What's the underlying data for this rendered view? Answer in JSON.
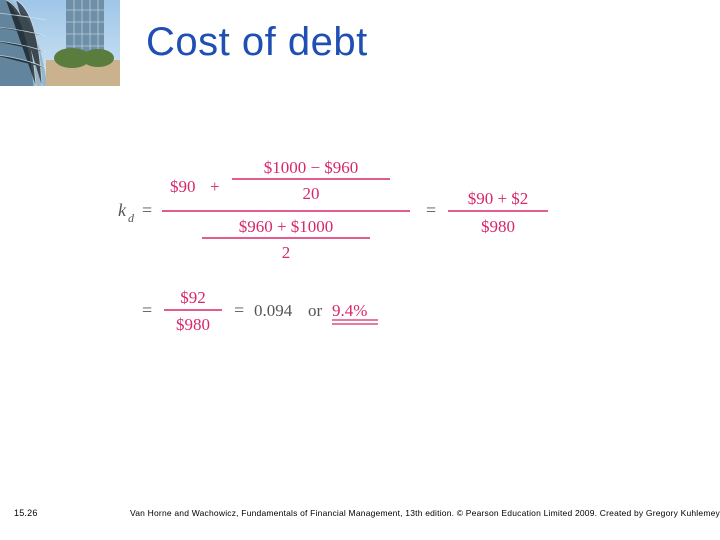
{
  "title": {
    "text": "Cost of debt",
    "color": "#1f4fb3"
  },
  "thumb": {
    "sky_top": "#9fc6e8",
    "sky_bottom": "#cfe4f3",
    "building1": "#6d8fa8",
    "building2": "#4b6f8a",
    "glass": "#98b6c8",
    "pot": "#c9b28d",
    "plant": "#5a7d3e"
  },
  "equation": {
    "text_color": "#555555",
    "value_color": "#d8276b",
    "k": {
      "sym": "k",
      "sub": "d"
    },
    "line1": {
      "coupon": "$90",
      "num_left": "$1000",
      "num_right": "$960",
      "num_den": "20",
      "den_left": "$960",
      "den_right": "$1000",
      "den_den": "2",
      "rhs_num_left": "$90",
      "rhs_num_right": "$2",
      "rhs_den": "$980"
    },
    "line2": {
      "num": "$92",
      "den": "$980",
      "dec": "0.094",
      "or": "or",
      "pct": "9.4%"
    },
    "font_family": "Georgia, 'Times New Roman', serif",
    "font_size_main": 17,
    "font_size_sub": 12
  },
  "page_num": "15.26",
  "footer": "Van Horne and Wachowicz, Fundamentals of Financial Management, 13th edition. © Pearson Education Limited 2009. Created by Gregory Kuhlemeyer."
}
